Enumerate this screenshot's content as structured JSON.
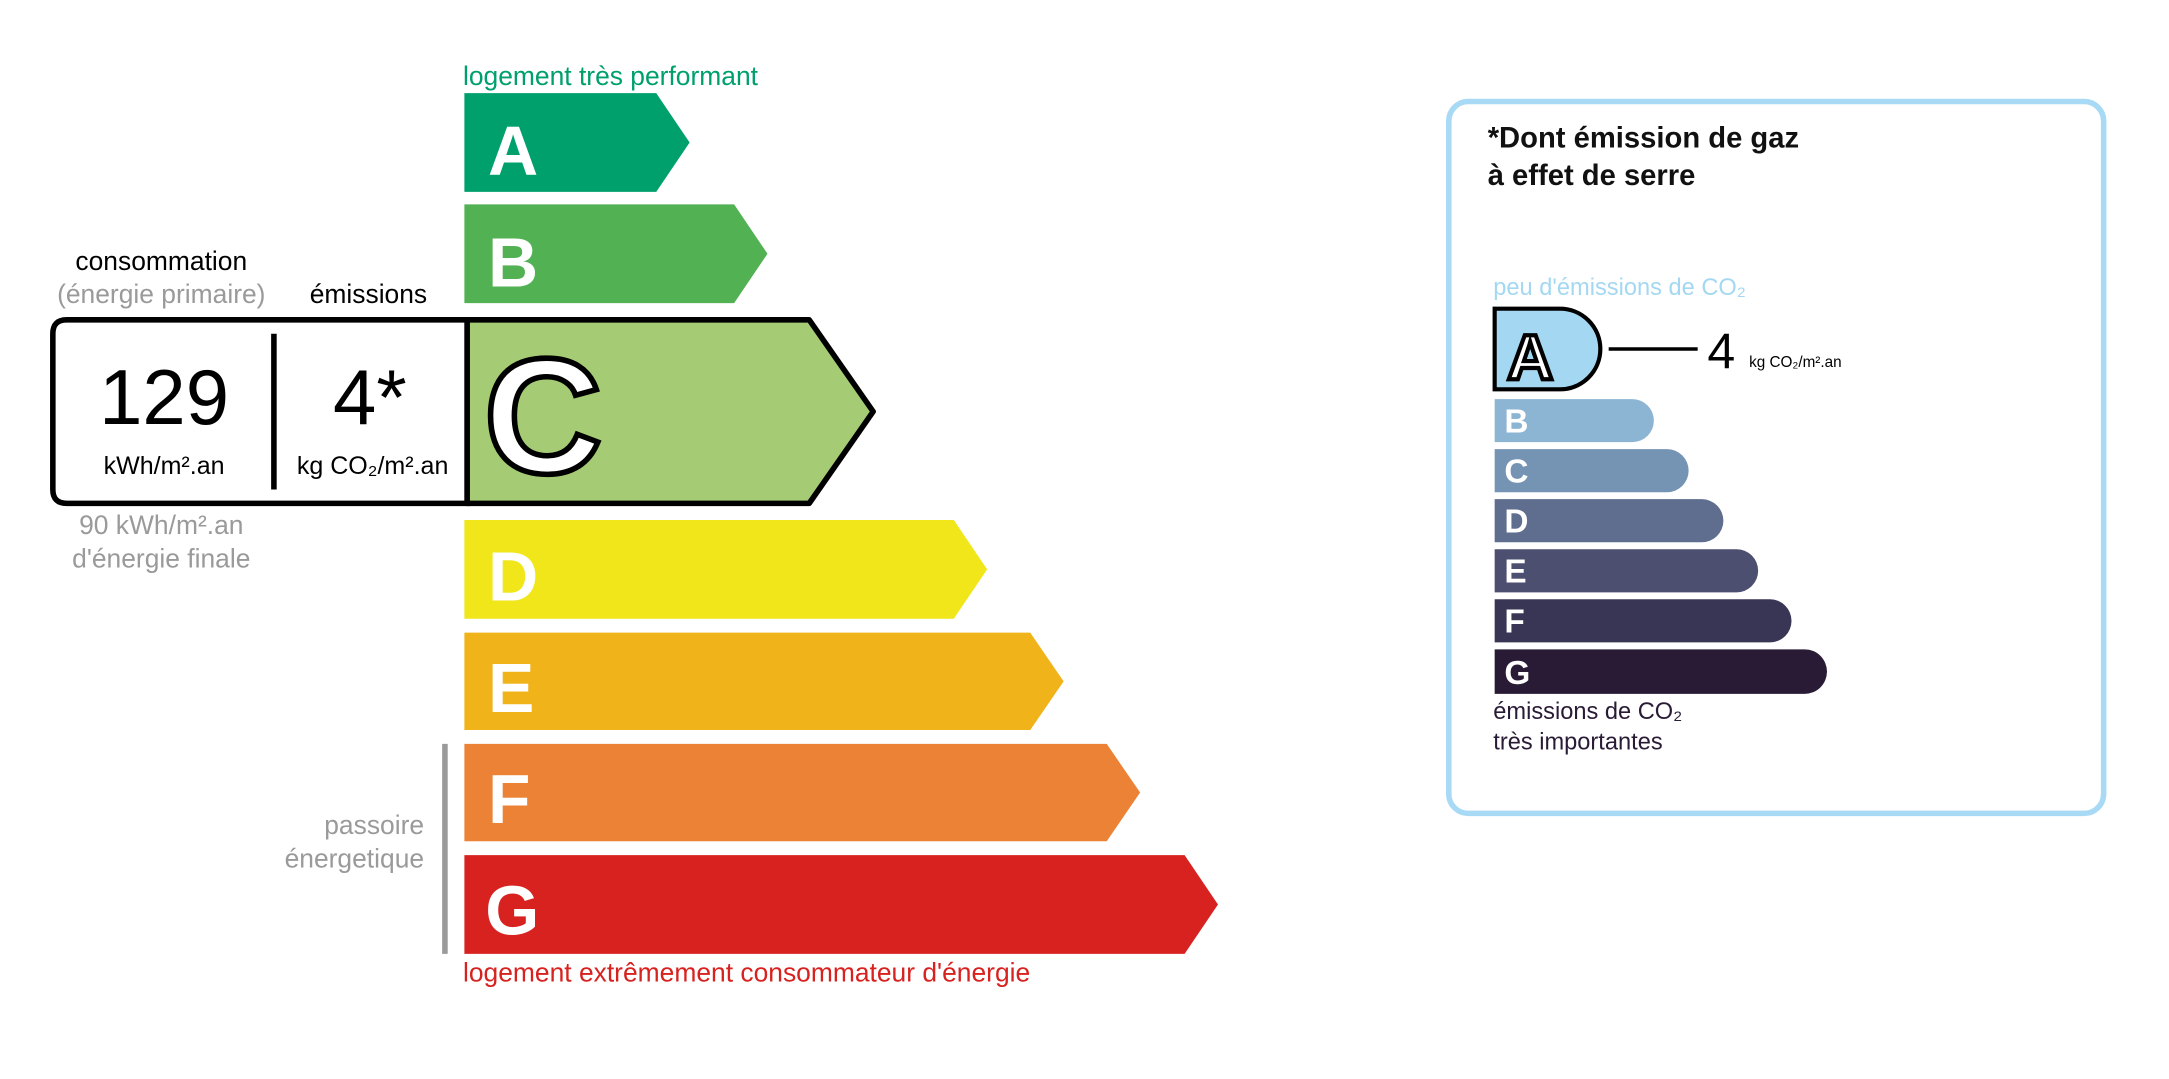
{
  "energy": {
    "top_label": "logement très performant",
    "bottom_label": "logement extrêmement consommateur d'énergie",
    "top_color": "#00a06d",
    "bottom_color": "#d7221f",
    "classes": [
      {
        "letter": "A",
        "color": "#00a06d"
      },
      {
        "letter": "B",
        "color": "#52b153"
      },
      {
        "letter": "C",
        "color": "#a5cc74"
      },
      {
        "letter": "D",
        "color": "#f0e61a"
      },
      {
        "letter": "E",
        "color": "#f0b41a"
      },
      {
        "letter": "F",
        "color": "#eb8235"
      },
      {
        "letter": "G",
        "color": "#d7221f"
      }
    ],
    "current_class": "C",
    "consumption_label": "consommation",
    "consumption_sublabel": "(énergie primaire)",
    "emissions_label": "émissions",
    "consumption_value": "129",
    "consumption_unit": "kWh/m².an",
    "emissions_value": "4*",
    "emissions_unit": "kg CO₂/m².an",
    "final_energy_value": "90 kWh/m².an",
    "final_energy_label": "d'énergie finale",
    "passoire_line1": "passoire",
    "passoire_line2": "énergetique"
  },
  "ghg": {
    "title_line1": "*Dont émission de gaz",
    "title_line2": "à effet de serre",
    "top_label": "peu d'émissions de CO₂",
    "bottom_label_line1": "émissions de CO₂",
    "bottom_label_line2": "très importantes",
    "border_color": "#a8daf5",
    "current_class": "A",
    "value": "4",
    "unit": "kg CO₂/m².an",
    "classes": [
      {
        "letter": "A",
        "color": "#a4d8f2"
      },
      {
        "letter": "B",
        "color": "#8cb4d3"
      },
      {
        "letter": "C",
        "color": "#7594b4"
      },
      {
        "letter": "D",
        "color": "#5f6e8f"
      },
      {
        "letter": "E",
        "color": "#4c4f70"
      },
      {
        "letter": "F",
        "color": "#383654"
      },
      {
        "letter": "G",
        "color": "#291b35"
      }
    ]
  }
}
